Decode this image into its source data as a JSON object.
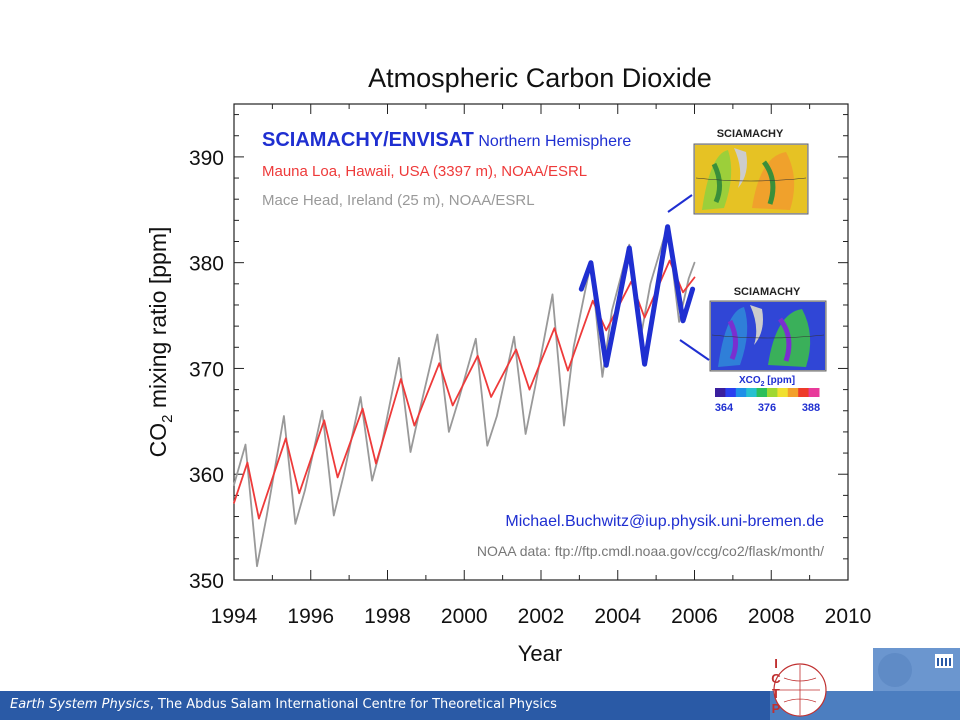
{
  "footer": {
    "emph": "Earth System Physics",
    "rest": ", The Abdus Salam International Centre for Theoretical Physics"
  },
  "logo": {
    "letters": [
      "I",
      "C",
      "T",
      "P"
    ]
  },
  "chart_data": {
    "type": "line",
    "title": "Atmospheric Carbon Dioxide",
    "xlabel": "Year",
    "ylabel_parts": [
      "CO",
      "2",
      " mixing ratio [ppm]"
    ],
    "xlim": [
      1994,
      2010
    ],
    "ylim": [
      350,
      395
    ],
    "xticks": [
      1994,
      1996,
      1998,
      2000,
      2002,
      2004,
      2006,
      2008,
      2010
    ],
    "yticks": [
      350,
      360,
      370,
      380,
      390
    ],
    "legend": [
      {
        "text": "SCIAMACHY/ENVISAT",
        "suffix": " Northern Hemisphere",
        "color": "#1f2fd1"
      },
      {
        "text": "Mauna Loa, Hawaii, USA (3397 m), NOAA/ESRL",
        "color": "#ee3a3a"
      },
      {
        "text": "Mace Head, Ireland (25 m), NOAA/ESRL",
        "color": "#999999"
      }
    ],
    "annotations": {
      "email": "Michael.Buchwitz@iup.physik.uni-bremen.de",
      "source": "NOAA data: ftp://ftp.cmdl.noaa.gov/ccg/co2/flask/month/"
    },
    "inset_maps": [
      {
        "title": "SCIAMACHY",
        "palette": "summer-high",
        "colors": [
          "#e6c224",
          "#9ccf3a",
          "#f0a12c",
          "#3a8f3a"
        ]
      },
      {
        "title": "SCIAMACHY",
        "palette": "autumn-low",
        "colors": [
          "#3046d6",
          "#2f7fd8",
          "#3ab05a",
          "#7a2fd0"
        ]
      }
    ],
    "colorbar": {
      "label_parts": [
        "XCO",
        "2",
        " [ppm]"
      ],
      "ticks": [
        "364",
        "376",
        "388"
      ],
      "colors": [
        "#3a1f9e",
        "#2a3ff0",
        "#1f8fe8",
        "#27c0d0",
        "#2bbf5a",
        "#9fd832",
        "#f0e030",
        "#f3a02a",
        "#ee3a2a",
        "#e83a9a"
      ]
    },
    "series": [
      {
        "name": "Mauna Loa, Hawaii, USA (3397 m), NOAA/ESRL",
        "color": "#ee3a3a",
        "x": [
          1994.0,
          1994.35,
          1994.65,
          1995.35,
          1995.7,
          1996.35,
          1996.7,
          1997.35,
          1997.7,
          1998.35,
          1998.7,
          1999.35,
          1999.7,
          2000.35,
          2000.7,
          2001.35,
          2001.7,
          2002.35,
          2002.7,
          2003.35,
          2003.7,
          2004.35,
          2004.7,
          2005.35,
          2005.7,
          2006.0
        ],
        "y": [
          357.3,
          361.1,
          355.8,
          363.4,
          358.2,
          365.1,
          359.7,
          366.2,
          361.0,
          369.0,
          364.6,
          370.5,
          366.5,
          371.2,
          367.3,
          371.8,
          368.0,
          373.8,
          369.8,
          376.4,
          373.6,
          378.2,
          374.8,
          380.2,
          377.2,
          378.6
        ]
      },
      {
        "name": "Mace Head, Ireland (25 m), NOAA/ESRL",
        "color": "#999999",
        "x": [
          1994.0,
          1994.3,
          1994.6,
          1994.85,
          1995.3,
          1995.6,
          1995.85,
          1996.3,
          1996.6,
          1996.85,
          1997.3,
          1997.6,
          1997.85,
          1998.3,
          1998.6,
          1998.85,
          1999.3,
          1999.6,
          1999.85,
          2000.3,
          2000.6,
          2000.85,
          2001.3,
          2001.6,
          2001.85,
          2002.3,
          2002.6,
          2002.85,
          2003.3,
          2003.6,
          2003.85,
          2004.3,
          2004.6,
          2004.85,
          2005.3,
          2005.6,
          2005.85,
          2006.0
        ],
        "y": [
          359.0,
          362.8,
          351.3,
          356.0,
          365.5,
          355.3,
          358.5,
          366.0,
          356.1,
          359.8,
          367.3,
          359.4,
          362.8,
          371.0,
          362.1,
          366.2,
          373.2,
          364.0,
          367.0,
          372.8,
          362.7,
          365.5,
          373.0,
          363.8,
          368.3,
          377.0,
          364.6,
          372.0,
          380.0,
          369.2,
          375.5,
          381.7,
          373.0,
          378.0,
          383.5,
          374.4,
          378.5,
          380.0
        ]
      },
      {
        "name": "SCIAMACHY/ENVISAT Northern Hemisphere",
        "color": "#1f2fd1",
        "x": [
          2003.05,
          2003.3,
          2003.7,
          2004.3,
          2004.7,
          2005.3,
          2005.7,
          2005.95
        ],
        "y": [
          377.5,
          380.0,
          370.3,
          381.4,
          370.4,
          383.4,
          374.5,
          377.5
        ]
      }
    ]
  }
}
